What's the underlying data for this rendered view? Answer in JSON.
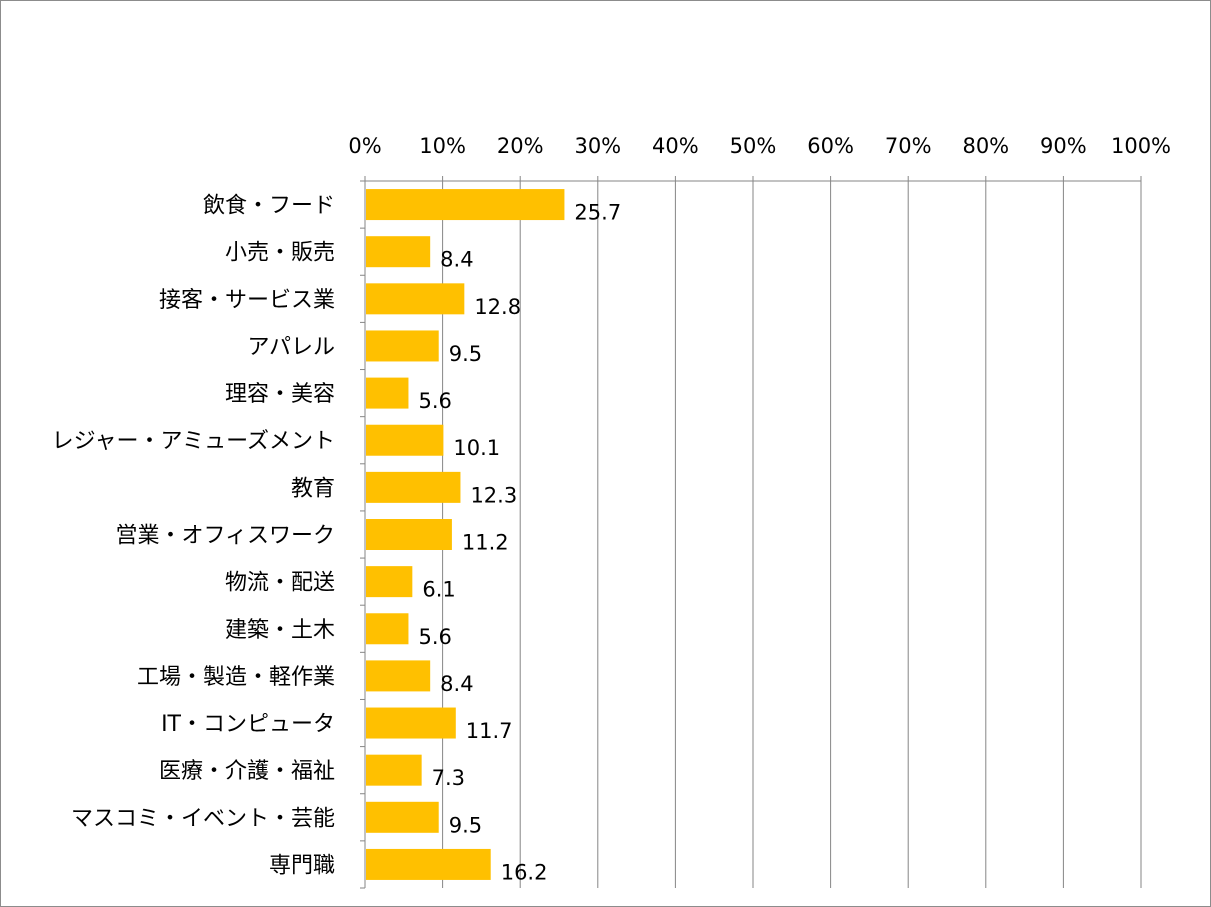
{
  "chart_data": {
    "type": "bar",
    "orientation": "horizontal",
    "categories": [
      "飲食・フード",
      "小売・販売",
      "接客・サービス業",
      "アパレル",
      "理容・美容",
      "レジャー・アミューズメント",
      "教育",
      "営業・オフィスワーク",
      "物流・配送",
      "建築・土木",
      "工場・製造・軽作業",
      "IT・コンピュータ",
      "医療・介護・福祉",
      "マスコミ・イベント・芸能",
      "専門職"
    ],
    "values": [
      25.7,
      8.4,
      12.8,
      9.5,
      5.6,
      10.1,
      12.3,
      11.2,
      6.1,
      5.6,
      8.4,
      11.7,
      7.3,
      9.5,
      16.2
    ],
    "value_labels": [
      "25.7",
      "8.4",
      "12.8",
      "9.5",
      "5.6",
      "10.1",
      "12.3",
      "11.2",
      "6.1",
      "5.6",
      "8.4",
      "11.7",
      "7.3",
      "9.5",
      "16.2"
    ],
    "xlim": [
      0,
      100
    ],
    "x_ticks": [
      "0%",
      "10%",
      "20%",
      "30%",
      "40%",
      "50%",
      "60%",
      "70%",
      "80%",
      "90%",
      "100%"
    ],
    "x_axis_position": "top",
    "grid": true,
    "legend": "none",
    "bar_color": "#FFC000",
    "grid_color": "#868686",
    "title": "",
    "xlabel": "",
    "ylabel": ""
  }
}
